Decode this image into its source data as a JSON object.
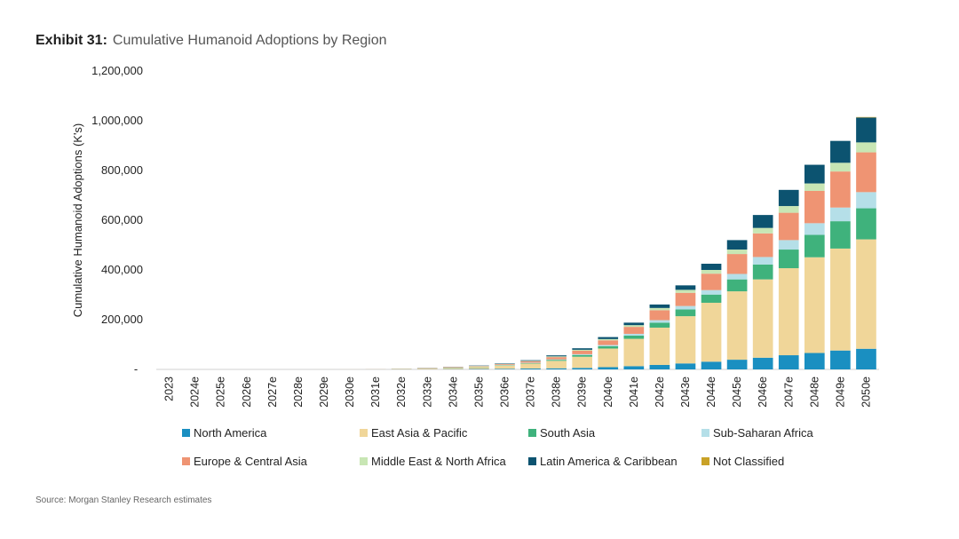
{
  "header": {
    "exhibit_label": "Exhibit 31:",
    "title": "Cumulative Humanoid Adoptions by Region"
  },
  "source": "Source: Morgan Stanley Research estimates",
  "colors": {
    "North America": "#1a8fc1",
    "East Asia & Pacific": "#f0d699",
    "South Asia": "#3fb27c",
    "Sub-Saharan Africa": "#b5dfe8",
    "Europe & Central Asia": "#ef9473",
    "Middle East & North Africa": "#c8e6b4",
    "Latin America & Caribbean": "#0c5370",
    "Not Classified": "#c9a227"
  },
  "chart_data": {
    "type": "bar",
    "stacked": true,
    "ylabel": "Cumulative Humanoid Adoptions (K's)",
    "ylim": [
      0,
      1200000
    ],
    "yticks": [
      0,
      200000,
      400000,
      600000,
      800000,
      1000000,
      1200000
    ],
    "ytick_labels": [
      "-",
      "200,000",
      "400,000",
      "600,000",
      "800,000",
      "1,000,000",
      "1,200,000"
    ],
    "legend_position": "bottom",
    "categories": [
      "2023",
      "2024e",
      "2025e",
      "2026e",
      "2027e",
      "2028e",
      "2029e",
      "2030e",
      "2031e",
      "2032e",
      "2033e",
      "2034e",
      "2035e",
      "2036e",
      "2037e",
      "2038e",
      "2039e",
      "2040e",
      "2041e",
      "2042e",
      "2043e",
      "2044e",
      "2045e",
      "2046e",
      "2047e",
      "2048e",
      "2049e",
      "2050e"
    ],
    "series": [
      {
        "name": "North America",
        "values": [
          0,
          0,
          0,
          0,
          0,
          0,
          0,
          0,
          200,
          500,
          800,
          1200,
          1800,
          2500,
          3500,
          4500,
          6000,
          9000,
          13000,
          18000,
          24000,
          31000,
          39000,
          47000,
          57000,
          66000,
          76000,
          83000
        ]
      },
      {
        "name": "East Asia & Pacific",
        "values": [
          0,
          0,
          0,
          0,
          0,
          0,
          100,
          200,
          500,
          1500,
          3000,
          5000,
          8000,
          13000,
          20000,
          30000,
          45000,
          75000,
          110000,
          150000,
          190000,
          237000,
          275000,
          315000,
          350000,
          385000,
          410000,
          440000
        ]
      },
      {
        "name": "South Asia",
        "values": [
          0,
          0,
          0,
          0,
          0,
          0,
          0,
          0,
          0,
          200,
          400,
          700,
          1000,
          1500,
          2000,
          4000,
          7000,
          9000,
          13000,
          20000,
          27000,
          33000,
          48000,
          60000,
          75000,
          90000,
          110000,
          125000
        ]
      },
      {
        "name": "Sub-Saharan Africa",
        "values": [
          0,
          0,
          0,
          0,
          0,
          0,
          0,
          0,
          0,
          100,
          300,
          500,
          700,
          1000,
          1500,
          2000,
          3000,
          5000,
          7000,
          10000,
          14000,
          18000,
          22000,
          30000,
          38000,
          47000,
          55000,
          65000
        ]
      },
      {
        "name": "Europe & Central Asia",
        "values": [
          0,
          0,
          0,
          0,
          0,
          0,
          0,
          0,
          200,
          500,
          1000,
          1500,
          2000,
          3000,
          6000,
          9000,
          14000,
          19000,
          28000,
          40000,
          53000,
          66000,
          80000,
          95000,
          110000,
          130000,
          145000,
          160000
        ]
      },
      {
        "name": "Middle East & North Africa",
        "values": [
          0,
          0,
          0,
          0,
          0,
          0,
          0,
          0,
          0,
          200,
          300,
          500,
          800,
          1200,
          1500,
          3000,
          4000,
          5000,
          7000,
          9000,
          12000,
          15000,
          18000,
          22000,
          27000,
          30000,
          35000,
          40000
        ]
      },
      {
        "name": "Latin America & Caribbean",
        "values": [
          0,
          0,
          0,
          0,
          0,
          0,
          0,
          0,
          0,
          300,
          500,
          800,
          1200,
          1800,
          2500,
          4000,
          6000,
          8000,
          10000,
          14000,
          18000,
          25000,
          38000,
          52000,
          65000,
          75000,
          88000,
          100000
        ]
      },
      {
        "name": "Not Classified",
        "values": [
          0,
          0,
          0,
          0,
          0,
          0,
          0,
          0,
          0,
          0,
          0,
          0,
          0,
          0,
          0,
          0,
          0,
          0,
          0,
          0,
          0,
          0,
          0,
          0,
          0,
          0,
          0,
          2000
        ]
      }
    ]
  }
}
